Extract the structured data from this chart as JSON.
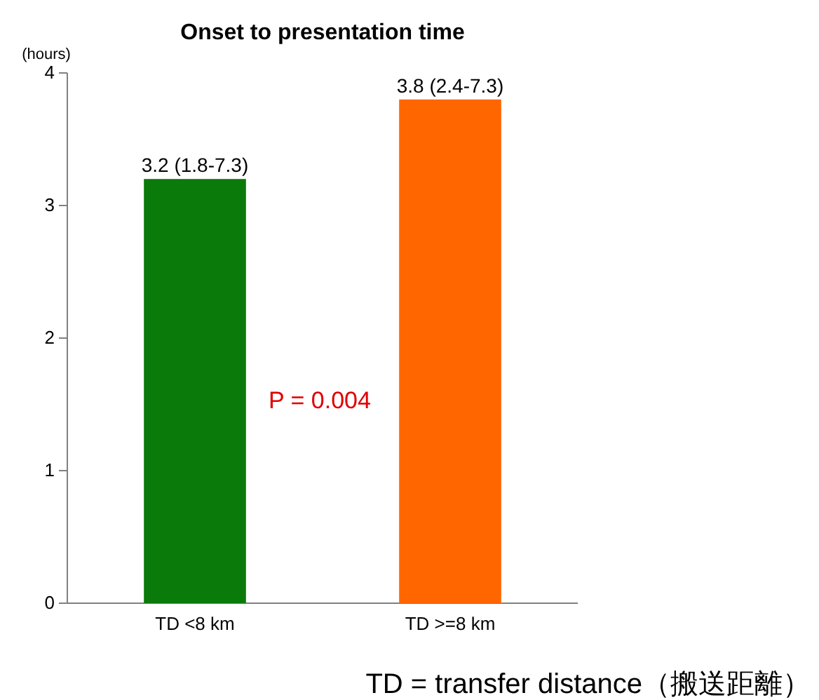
{
  "chart_data": {
    "type": "bar",
    "title": "Onset to presentation time",
    "ylabel": "(hours)",
    "categories": [
      "TD <8 km",
      "TD >=8 km"
    ],
    "values": [
      3.2,
      3.8
    ],
    "colors": [
      "#0a7a0a",
      "#ff6600"
    ],
    "value_labels": [
      "3.2 (1.8-7.3)",
      "3.8 (2.4-7.3)"
    ],
    "ylim": [
      0,
      4
    ],
    "yticks": [
      0,
      1,
      2,
      3,
      4
    ],
    "grid": false,
    "annotations": [
      "P = 0.004",
      "TD = transfer distance（搬送距離）"
    ]
  }
}
